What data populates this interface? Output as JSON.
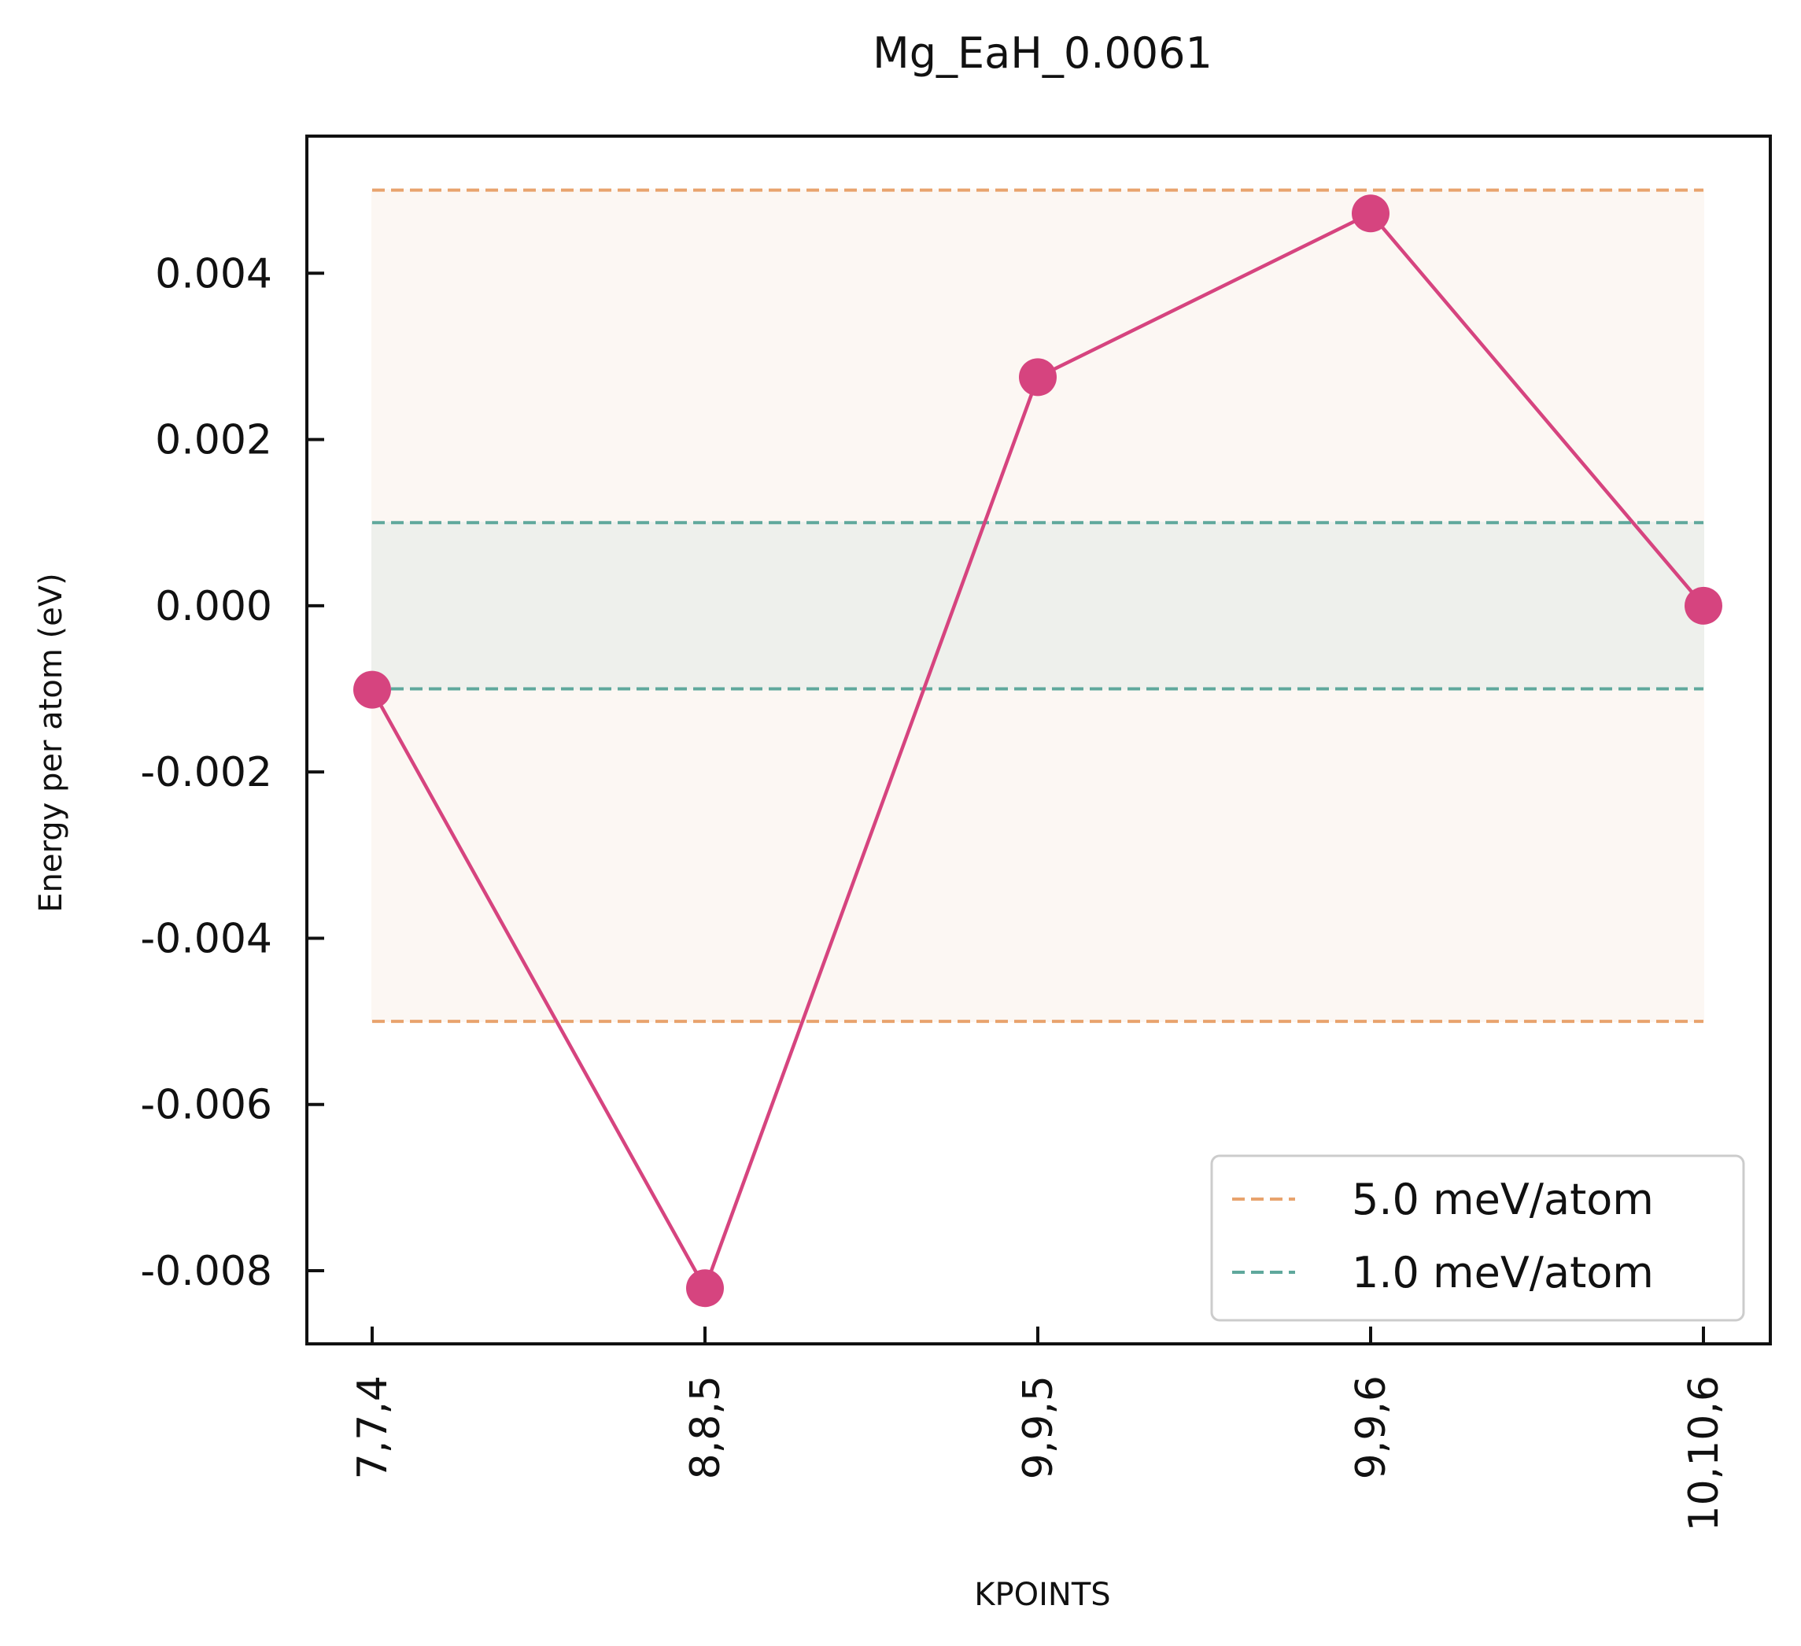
{
  "chart_data": {
    "type": "line",
    "title": "Mg_EaH_0.0061",
    "xlabel": "KPOINTS",
    "ylabel": "Energy per atom (eV)",
    "categories": [
      "7,7,4",
      "8,8,5",
      "9,9,5",
      "9,9,6",
      "10,10,6"
    ],
    "series": [
      {
        "name": "",
        "color": "#d6447f",
        "values": [
          -0.00101,
          -0.00821,
          0.00275,
          0.00472,
          0.0
        ]
      }
    ],
    "yticks": [
      "0.004",
      "0.002",
      "0.000",
      "-0.002",
      "-0.004",
      "-0.006",
      "-0.008"
    ],
    "ytick_values": [
      0.004,
      0.002,
      0.0,
      -0.002,
      -0.004,
      -0.006,
      -0.008
    ],
    "ylim": [
      -0.00888,
      0.00565
    ],
    "thresholds": [
      {
        "label": "5.0 meV/atom",
        "value": 0.005,
        "color": "#e8a36d",
        "fill": "#fcf7f3"
      },
      {
        "label": "1.0 meV/atom",
        "value": 0.001,
        "color": "#5fa89c",
        "fill": "#eef0ec"
      }
    ],
    "legend": {
      "position": "lower right"
    },
    "grid": false
  }
}
